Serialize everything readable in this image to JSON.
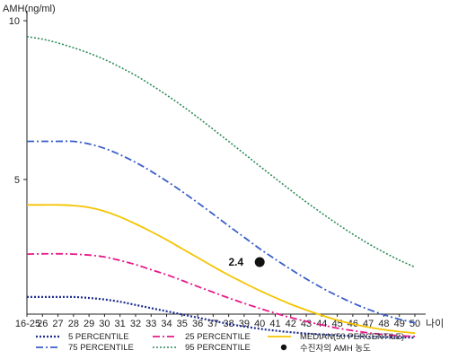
{
  "chart_data": {
    "type": "line",
    "ylabel": "AMH(ng/ml)",
    "xlabel": "나이",
    "x": [
      "16-25",
      "26",
      "27",
      "28",
      "29",
      "30",
      "31",
      "32",
      "33",
      "34",
      "35",
      "36",
      "37",
      "38",
      "39",
      "40",
      "41",
      "42",
      "43",
      "44",
      "45",
      "46",
      "47",
      "48",
      "49",
      "50"
    ],
    "ylim": [
      -1,
      11
    ],
    "yticks": [
      5,
      10
    ],
    "grid": false,
    "series": [
      {
        "name": "5 PERCENTILE",
        "color": "#1a2a8c",
        "dash": "2,2",
        "width": 2.2,
        "values": [
          1.3,
          1.3,
          1.3,
          1.3,
          1.27,
          1.22,
          1.15,
          1.05,
          0.95,
          0.85,
          0.75,
          0.65,
          0.55,
          0.45,
          0.37,
          0.3,
          0.24,
          0.19,
          0.15,
          0.12,
          0.09,
          0.07,
          0.05,
          0.04,
          0.03,
          0.02
        ]
      },
      {
        "name": "25 PERCENTILE",
        "color": "#e8198a",
        "dash": "8,3,2,3",
        "width": 1.8,
        "values": [
          2.65,
          2.66,
          2.66,
          2.65,
          2.62,
          2.56,
          2.45,
          2.32,
          2.16,
          2.0,
          1.82,
          1.63,
          1.45,
          1.27,
          1.1,
          0.94,
          0.79,
          0.65,
          0.53,
          0.42,
          0.32,
          0.24,
          0.17,
          0.12,
          0.08,
          0.06
        ]
      },
      {
        "name": "MEDIAN(50 PERCENTILE)",
        "color": "#f5c400",
        "dash": "",
        "width": 1.8,
        "values": [
          4.2,
          4.2,
          4.2,
          4.18,
          4.12,
          4.0,
          3.82,
          3.6,
          3.36,
          3.1,
          2.82,
          2.54,
          2.26,
          1.99,
          1.74,
          1.5,
          1.28,
          1.07,
          0.89,
          0.72,
          0.57,
          0.45,
          0.35,
          0.27,
          0.21,
          0.16
        ]
      },
      {
        "name": "75 PERCENTILE",
        "color": "#3a5fc8",
        "dash": "8,3,2,3",
        "width": 1.8,
        "values": [
          6.2,
          6.2,
          6.2,
          6.2,
          6.12,
          5.98,
          5.78,
          5.54,
          5.26,
          4.95,
          4.62,
          4.27,
          3.91,
          3.54,
          3.18,
          2.82,
          2.49,
          2.17,
          1.87,
          1.59,
          1.34,
          1.11,
          0.91,
          0.74,
          0.6,
          0.49
        ]
      },
      {
        "name": "95 PERCENTILE",
        "color": "#2e8b57",
        "dash": "2,2",
        "width": 1.6,
        "values": [
          9.5,
          9.42,
          9.3,
          9.15,
          8.98,
          8.78,
          8.54,
          8.28,
          7.98,
          7.66,
          7.32,
          6.96,
          6.58,
          6.2,
          5.81,
          5.42,
          5.04,
          4.66,
          4.29,
          3.94,
          3.6,
          3.28,
          2.98,
          2.71,
          2.46,
          2.24
        ]
      }
    ],
    "marker": {
      "label": "수진자의 AMH 농도",
      "x": "40",
      "y": 2.4,
      "value_text": "2.4"
    }
  }
}
